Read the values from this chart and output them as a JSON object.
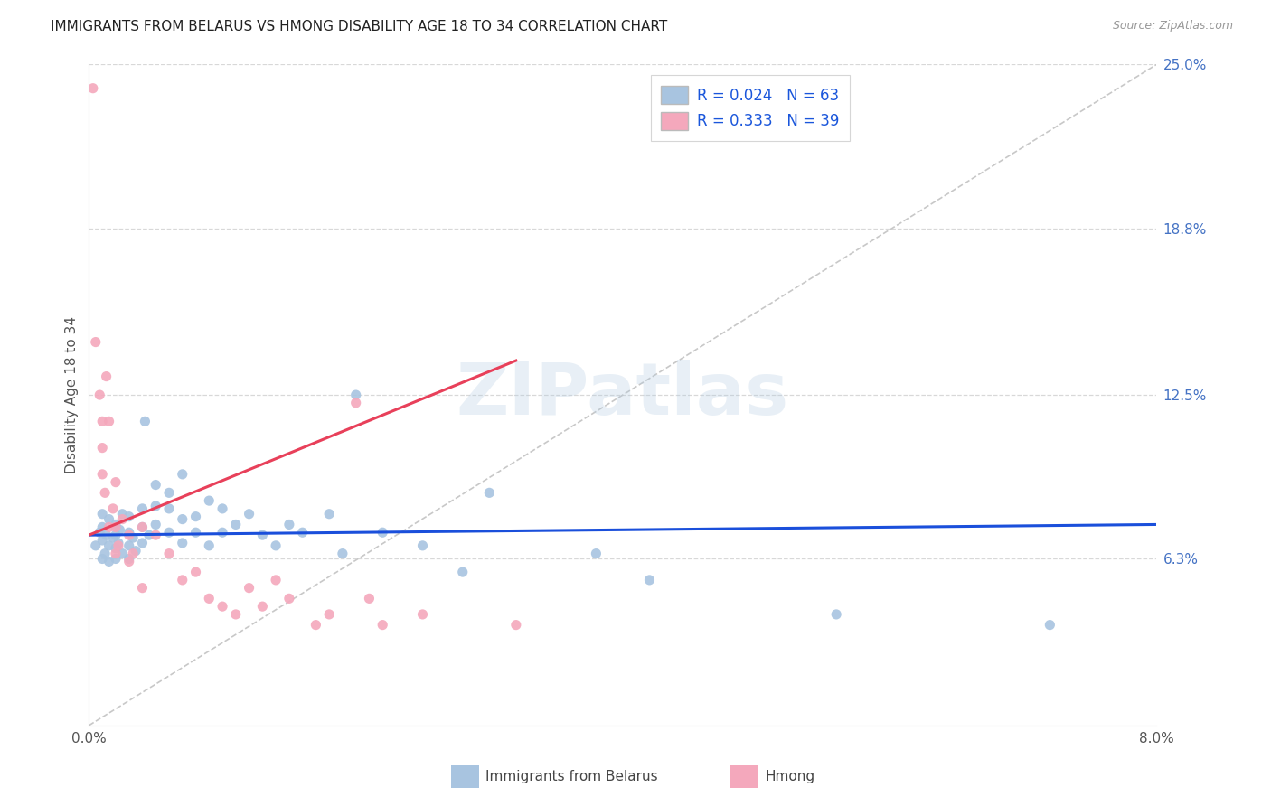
{
  "title": "IMMIGRANTS FROM BELARUS VS HMONG DISABILITY AGE 18 TO 34 CORRELATION CHART",
  "source": "Source: ZipAtlas.com",
  "ylabel": "Disability Age 18 to 34",
  "x_min": 0.0,
  "x_max": 0.08,
  "y_min": 0.0,
  "y_max": 0.25,
  "y_tick_labels_right": [
    "6.3%",
    "12.5%",
    "18.8%",
    "25.0%"
  ],
  "y_tick_vals_right": [
    0.063,
    0.125,
    0.188,
    0.25
  ],
  "legend_labels": [
    "Immigrants from Belarus",
    "Hmong"
  ],
  "legend_R": [
    0.024,
    0.333
  ],
  "legend_N": [
    63,
    39
  ],
  "belarus_color": "#a8c4e0",
  "hmong_color": "#f4a8bc",
  "belarus_line_color": "#1a4fdb",
  "hmong_line_color": "#e8405a",
  "diagonal_color": "#c8c8c8",
  "grid_color": "#d8d8d8",
  "title_color": "#222222",
  "right_label_color": "#4472c4",
  "watermark": "ZIPatlas",
  "belarus_x": [
    0.0005,
    0.0008,
    0.001,
    0.001,
    0.001,
    0.001,
    0.0012,
    0.0013,
    0.0015,
    0.0015,
    0.0015,
    0.0018,
    0.002,
    0.002,
    0.002,
    0.002,
    0.0022,
    0.0023,
    0.0025,
    0.0025,
    0.003,
    0.003,
    0.003,
    0.003,
    0.0033,
    0.0035,
    0.004,
    0.004,
    0.004,
    0.0042,
    0.0045,
    0.005,
    0.005,
    0.005,
    0.006,
    0.006,
    0.006,
    0.007,
    0.007,
    0.007,
    0.008,
    0.008,
    0.009,
    0.009,
    0.01,
    0.01,
    0.011,
    0.012,
    0.013,
    0.014,
    0.015,
    0.016,
    0.018,
    0.019,
    0.02,
    0.022,
    0.025,
    0.028,
    0.03,
    0.038,
    0.042,
    0.056,
    0.072
  ],
  "belarus_y": [
    0.068,
    0.073,
    0.063,
    0.07,
    0.075,
    0.08,
    0.065,
    0.072,
    0.062,
    0.068,
    0.078,
    0.071,
    0.063,
    0.067,
    0.072,
    0.076,
    0.069,
    0.074,
    0.065,
    0.08,
    0.063,
    0.068,
    0.073,
    0.079,
    0.071,
    0.066,
    0.069,
    0.075,
    0.082,
    0.115,
    0.072,
    0.076,
    0.083,
    0.091,
    0.088,
    0.073,
    0.082,
    0.078,
    0.069,
    0.095,
    0.073,
    0.079,
    0.068,
    0.085,
    0.073,
    0.082,
    0.076,
    0.08,
    0.072,
    0.068,
    0.076,
    0.073,
    0.08,
    0.065,
    0.125,
    0.073,
    0.068,
    0.058,
    0.088,
    0.065,
    0.055,
    0.042,
    0.038
  ],
  "hmong_x": [
    0.0003,
    0.0005,
    0.0008,
    0.001,
    0.001,
    0.001,
    0.0012,
    0.0013,
    0.0015,
    0.0015,
    0.0018,
    0.002,
    0.002,
    0.002,
    0.0022,
    0.0025,
    0.003,
    0.003,
    0.0033,
    0.004,
    0.004,
    0.005,
    0.006,
    0.007,
    0.008,
    0.009,
    0.01,
    0.011,
    0.012,
    0.013,
    0.014,
    0.015,
    0.017,
    0.018,
    0.02,
    0.021,
    0.022,
    0.025,
    0.032
  ],
  "hmong_y": [
    0.241,
    0.145,
    0.125,
    0.095,
    0.105,
    0.115,
    0.088,
    0.132,
    0.075,
    0.115,
    0.082,
    0.065,
    0.075,
    0.092,
    0.068,
    0.078,
    0.062,
    0.072,
    0.065,
    0.075,
    0.052,
    0.072,
    0.065,
    0.055,
    0.058,
    0.048,
    0.045,
    0.042,
    0.052,
    0.045,
    0.055,
    0.048,
    0.038,
    0.042,
    0.122,
    0.048,
    0.038,
    0.042,
    0.038
  ],
  "belarus_trend_x": [
    0.0,
    0.08
  ],
  "belarus_trend_y": [
    0.072,
    0.076
  ],
  "hmong_trend_x": [
    0.0,
    0.032
  ],
  "hmong_trend_y": [
    0.072,
    0.138
  ]
}
